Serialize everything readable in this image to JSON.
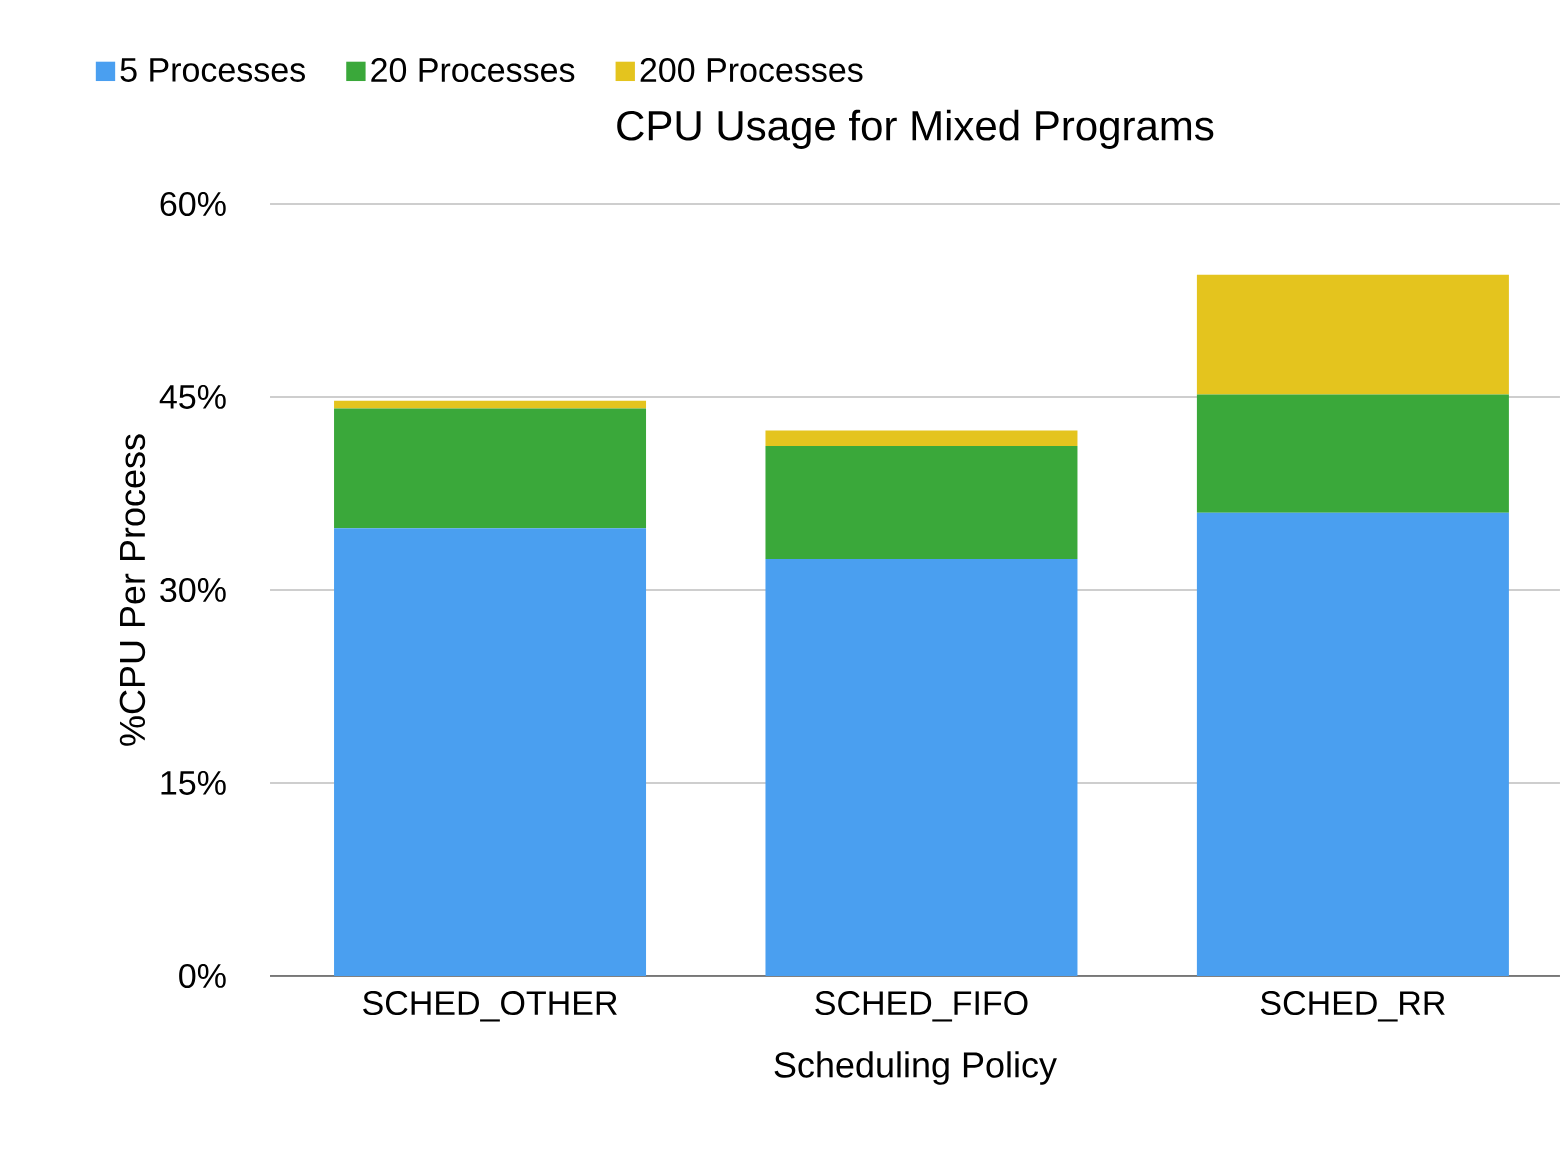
{
  "chart_data": {
    "type": "bar",
    "stacked": true,
    "title": "CPU Usage for Mixed Programs",
    "xlabel": "Scheduling Policy",
    "ylabel": "%CPU Per Process",
    "categories": [
      "SCHED_OTHER",
      "SCHED_FIFO",
      "SCHED_RR"
    ],
    "series": [
      {
        "name": "5 Processes",
        "color": "#4a9ff0",
        "values": [
          34.8,
          32.4,
          36.0
        ]
      },
      {
        "name": "20 Processes",
        "color": "#3aa83a",
        "values": [
          9.3,
          8.8,
          9.2
        ]
      },
      {
        "name": "200 Processes",
        "color": "#e4c41e",
        "values": [
          0.6,
          1.2,
          9.3
        ]
      }
    ],
    "ylim": [
      0,
      60
    ],
    "yticks": [
      {
        "value": 0,
        "label": "0%"
      },
      {
        "value": 15,
        "label": "15%"
      },
      {
        "value": 30,
        "label": "30%"
      },
      {
        "value": 45,
        "label": "45%"
      },
      {
        "value": 60,
        "label": "60%"
      }
    ],
    "grid": "y",
    "legend": "top left"
  }
}
